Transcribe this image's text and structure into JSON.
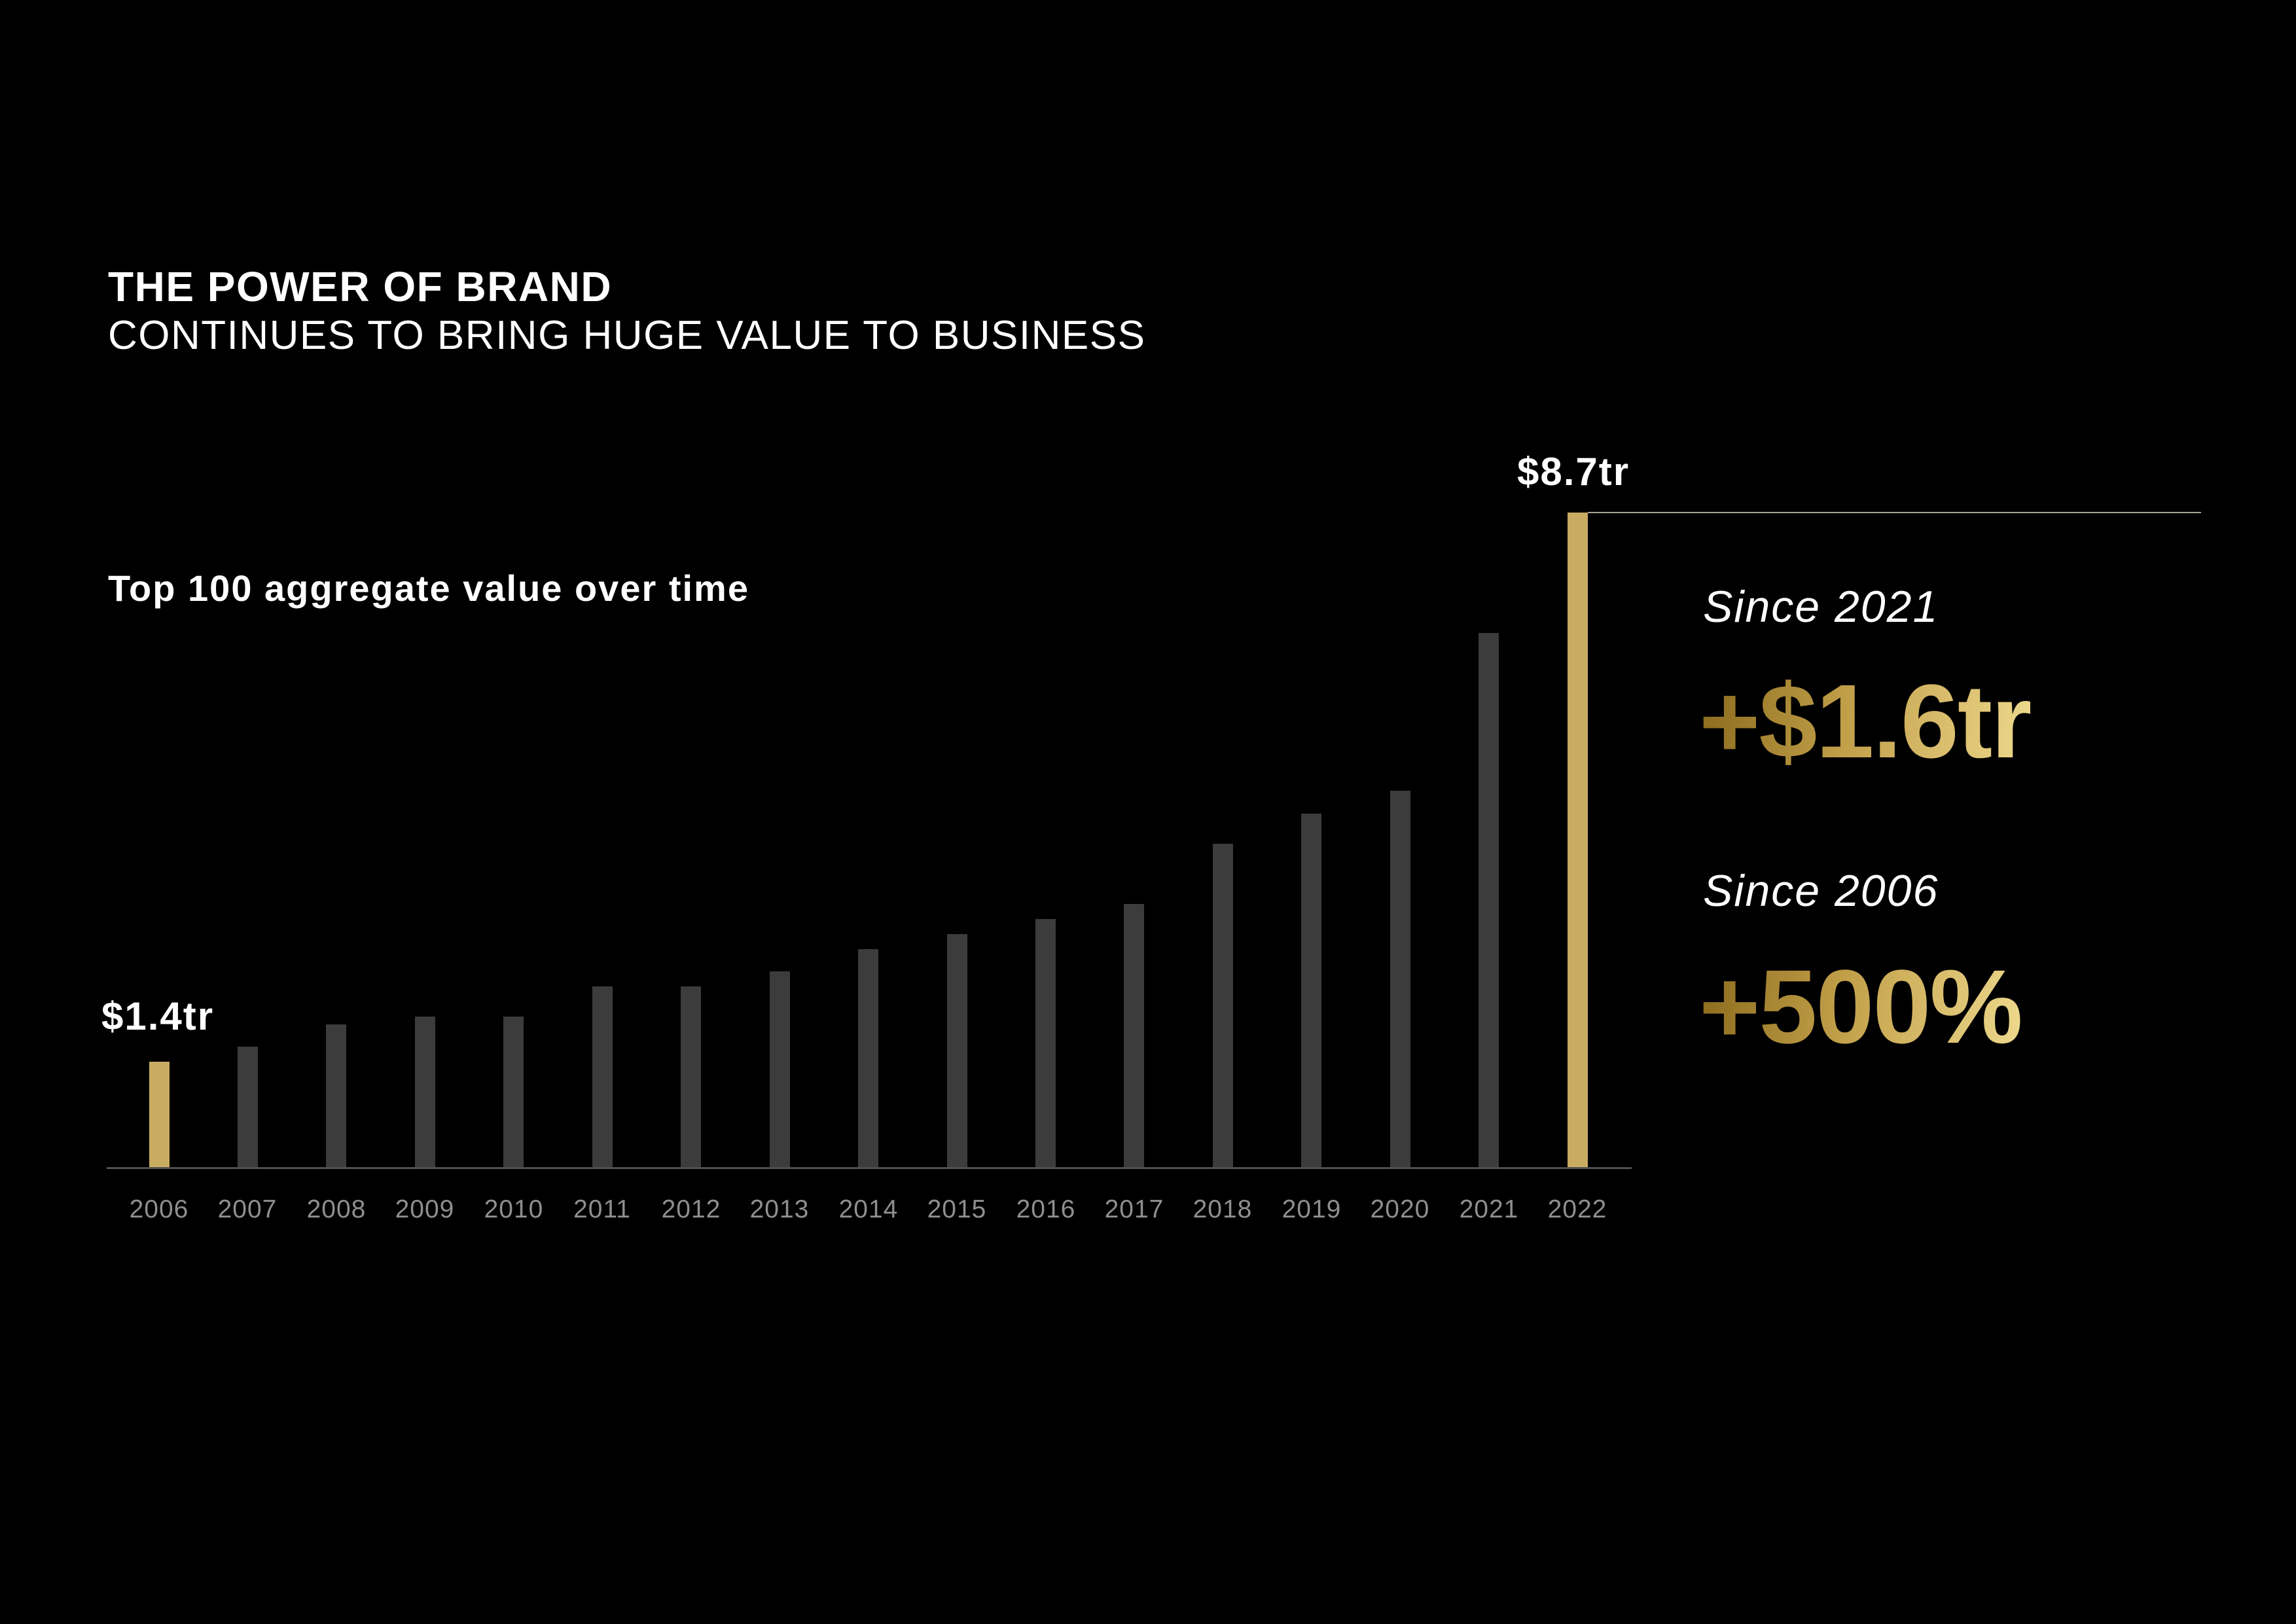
{
  "title": {
    "line1": "THE POWER OF BRAND",
    "line2": "CONTINUES TO BRING HUGE VALUE TO BUSINESS"
  },
  "chart": {
    "label": "Top 100 aggregate value over time",
    "first_bar_label": "$1.4tr",
    "last_bar_label": "$8.7tr"
  },
  "stats": [
    {
      "caption": "Since 2021",
      "value": "+$1.6tr"
    },
    {
      "caption": "Since 2006",
      "value": "+500%"
    }
  ],
  "chart_data": {
    "type": "bar",
    "title": "Top 100 aggregate value over time",
    "categories": [
      "2006",
      "2007",
      "2008",
      "2009",
      "2010",
      "2011",
      "2012",
      "2013",
      "2014",
      "2015",
      "2016",
      "2017",
      "2018",
      "2019",
      "2020",
      "2021",
      "2022"
    ],
    "values": [
      1.4,
      1.6,
      1.9,
      2.0,
      2.0,
      2.4,
      2.4,
      2.6,
      2.9,
      3.1,
      3.3,
      3.5,
      4.3,
      4.7,
      5.0,
      7.1,
      8.7
    ],
    "unit": "trillion USD",
    "ylim": [
      0,
      8.7
    ],
    "grid": false,
    "legend": false,
    "highlight_indices": [
      0,
      16
    ],
    "annotations": [
      {
        "target": "2006",
        "text": "$1.4tr"
      },
      {
        "target": "2022",
        "text": "$8.7tr"
      }
    ]
  },
  "colors": {
    "background": "#000000",
    "text_primary": "#ffffff",
    "bar_default": "#3c3c3c",
    "bar_highlight": "#c9ac62",
    "axis_line": "#505050",
    "tick_label": "#8f8f8f",
    "callout_line": "#aaa399",
    "gold_gradient_start": "#8a6a1c",
    "gold_gradient_mid": "#c2a04a",
    "gold_gradient_end": "#eed98d"
  }
}
